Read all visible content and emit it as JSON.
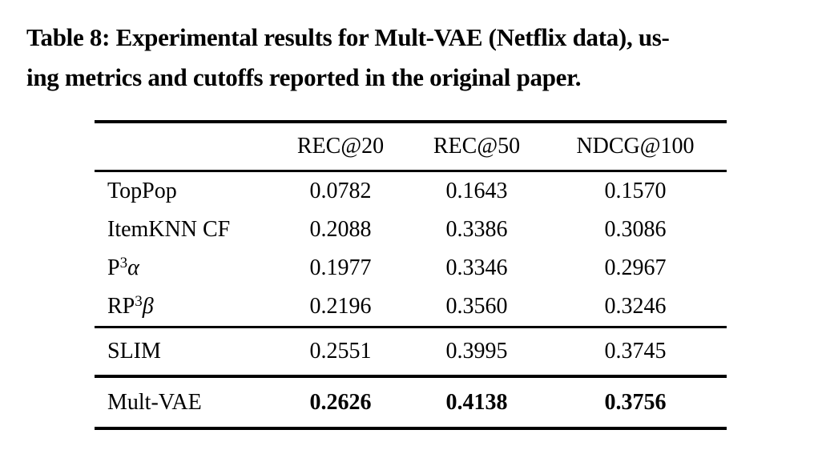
{
  "caption": {
    "line1": "Table 8: Experimental results for Mult-VAE (Netflix data), us-",
    "line2": "ing metrics and cutoffs reported in the original paper."
  },
  "table": {
    "columns": [
      "REC@20",
      "REC@50",
      "NDCG@100"
    ],
    "rows": [
      {
        "label": "TopPop",
        "sup": "",
        "suffix": "",
        "values": [
          "0.0782",
          "0.1643",
          "0.1570"
        ]
      },
      {
        "label": "ItemKNN CF",
        "sup": "",
        "suffix": "",
        "values": [
          "0.2088",
          "0.3386",
          "0.3086"
        ]
      },
      {
        "label": "P",
        "sup": "3",
        "suffix": "α",
        "values": [
          "0.1977",
          "0.3346",
          "0.2967"
        ]
      },
      {
        "label": "RP",
        "sup": "3",
        "suffix": "β",
        "values": [
          "0.2196",
          "0.3560",
          "0.3246"
        ]
      },
      {
        "label": "SLIM",
        "sup": "",
        "suffix": "",
        "values": [
          "0.2551",
          "0.3995",
          "0.3745"
        ]
      },
      {
        "label": "Mult-VAE",
        "sup": "",
        "suffix": "",
        "values": [
          "0.2626",
          "0.4138",
          "0.3756"
        ]
      }
    ],
    "text_color": "#000000",
    "background_color": "#ffffff"
  }
}
